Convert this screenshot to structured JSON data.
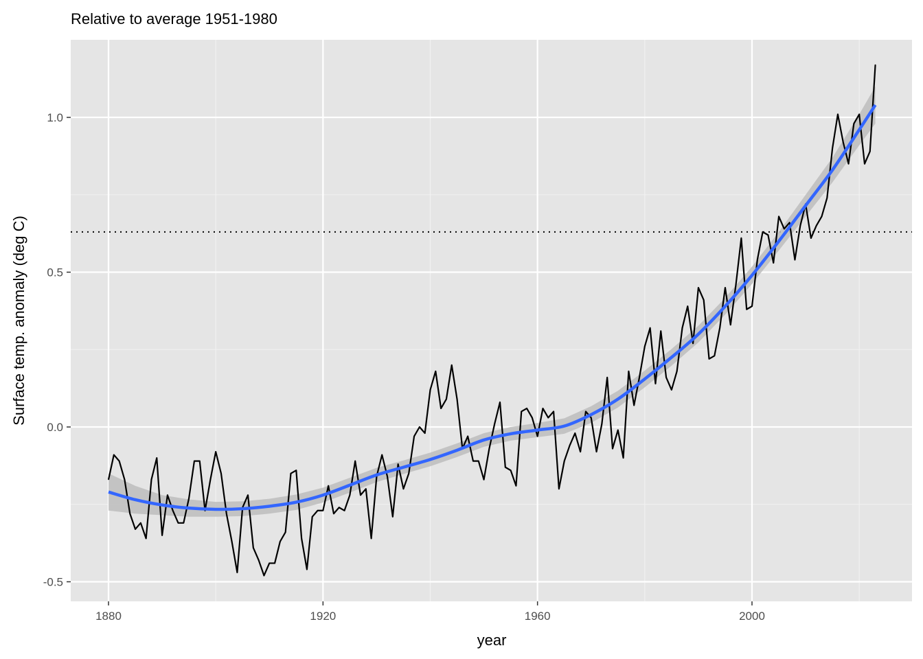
{
  "chart_data": {
    "type": "line",
    "title": "Relative to average 1951-1980",
    "xlabel": "year",
    "ylabel": "Surface temp. anomaly (deg C)",
    "xlim": [
      1873,
      2030
    ],
    "ylim": [
      -0.56,
      1.25
    ],
    "x_ticks": [
      "1880",
      "1920",
      "1960",
      "2000"
    ],
    "y_ticks": [
      "-0.5",
      "0.0",
      "0.5",
      "1.0"
    ],
    "grid": true,
    "background": "#e5e5e5",
    "reference_line": {
      "y": 0.63,
      "style": "dotted",
      "color": "#000000"
    },
    "series": [
      {
        "type": "line",
        "color": "#000000",
        "x_start": 1880,
        "values": [
          -0.17,
          -0.09,
          -0.11,
          -0.17,
          -0.28,
          -0.33,
          -0.31,
          -0.36,
          -0.17,
          -0.1,
          -0.35,
          -0.22,
          -0.27,
          -0.31,
          -0.31,
          -0.23,
          -0.11,
          -0.11,
          -0.27,
          -0.17,
          -0.08,
          -0.15,
          -0.28,
          -0.37,
          -0.47,
          -0.26,
          -0.22,
          -0.39,
          -0.43,
          -0.48,
          -0.44,
          -0.44,
          -0.37,
          -0.34,
          -0.15,
          -0.14,
          -0.36,
          -0.46,
          -0.29,
          -0.27,
          -0.27,
          -0.19,
          -0.28,
          -0.26,
          -0.27,
          -0.22,
          -0.11,
          -0.22,
          -0.2,
          -0.36,
          -0.16,
          -0.09,
          -0.16,
          -0.29,
          -0.12,
          -0.2,
          -0.15,
          -0.03,
          0.0,
          -0.02,
          0.12,
          0.18,
          0.06,
          0.09,
          0.2,
          0.09,
          -0.07,
          -0.03,
          -0.11,
          -0.11,
          -0.17,
          -0.07,
          0.01,
          0.08,
          -0.13,
          -0.14,
          -0.19,
          0.05,
          0.06,
          0.03,
          -0.03,
          0.06,
          0.03,
          0.05,
          -0.2,
          -0.11,
          -0.06,
          -0.02,
          -0.08,
          0.05,
          0.03,
          -0.08,
          0.01,
          0.16,
          -0.07,
          -0.01,
          -0.1,
          0.18,
          0.07,
          0.16,
          0.26,
          0.32,
          0.14,
          0.31,
          0.16,
          0.12,
          0.18,
          0.32,
          0.39,
          0.27,
          0.45,
          0.41,
          0.22,
          0.23,
          0.32,
          0.45,
          0.33,
          0.46,
          0.61,
          0.38,
          0.39,
          0.54,
          0.63,
          0.62,
          0.53,
          0.68,
          0.64,
          0.66,
          0.54,
          0.65,
          0.72,
          0.61,
          0.65,
          0.68,
          0.74,
          0.9,
          1.01,
          0.92,
          0.85,
          0.98,
          1.01,
          0.85,
          0.89,
          1.17
        ]
      },
      {
        "type": "smooth",
        "color": "#3366ff",
        "band_color": "#bdbdbd",
        "x": [
          1880,
          1885,
          1890,
          1895,
          1900,
          1905,
          1910,
          1915,
          1920,
          1925,
          1930,
          1935,
          1940,
          1945,
          1950,
          1955,
          1960,
          1965,
          1970,
          1975,
          1980,
          1985,
          1990,
          1995,
          2000,
          2005,
          2010,
          2015,
          2020,
          2023
        ],
        "y": [
          -0.21,
          -0.235,
          -0.252,
          -0.262,
          -0.266,
          -0.264,
          -0.256,
          -0.243,
          -0.22,
          -0.188,
          -0.155,
          -0.13,
          -0.105,
          -0.075,
          -0.042,
          -0.022,
          -0.01,
          0.003,
          0.04,
          0.09,
          0.155,
          0.225,
          0.3,
          0.39,
          0.49,
          0.6,
          0.715,
          0.83,
          0.96,
          1.04
        ],
        "lower": [
          -0.27,
          -0.28,
          -0.285,
          -0.29,
          -0.29,
          -0.288,
          -0.28,
          -0.268,
          -0.244,
          -0.212,
          -0.178,
          -0.152,
          -0.127,
          -0.097,
          -0.064,
          -0.044,
          -0.033,
          -0.022,
          0.013,
          0.063,
          0.128,
          0.198,
          0.273,
          0.363,
          0.462,
          0.57,
          0.68,
          0.79,
          0.91,
          0.98
        ],
        "upper": [
          -0.15,
          -0.19,
          -0.22,
          -0.234,
          -0.242,
          -0.24,
          -0.232,
          -0.218,
          -0.196,
          -0.164,
          -0.132,
          -0.108,
          -0.083,
          -0.053,
          -0.02,
          0.0,
          0.013,
          0.028,
          0.067,
          0.117,
          0.182,
          0.252,
          0.327,
          0.417,
          0.518,
          0.63,
          0.75,
          0.87,
          1.01,
          1.1
        ]
      }
    ]
  }
}
